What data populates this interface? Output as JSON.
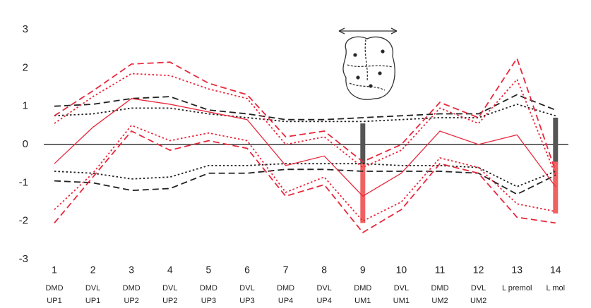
{
  "chart_data": {
    "type": "line",
    "categories": [
      "1",
      "2",
      "3",
      "4",
      "5",
      "6",
      "7",
      "8",
      "9",
      "10",
      "11",
      "12",
      "13",
      "14"
    ],
    "category_sublabels": [
      [
        "DMD",
        "UP1"
      ],
      [
        "DVL",
        "UP1"
      ],
      [
        "DMD",
        "UP2"
      ],
      [
        "DVL",
        "UP2"
      ],
      [
        "DMD",
        "UP3"
      ],
      [
        "DVL",
        "UP3"
      ],
      [
        "DMD",
        "UP4"
      ],
      [
        "DVL",
        "UP4"
      ],
      [
        "DMD",
        "UM1"
      ],
      [
        "DVL",
        "UM1"
      ],
      [
        "DMD",
        "UM2"
      ],
      [
        "DVL",
        "UM2"
      ],
      [
        "L premol"
      ],
      [
        "L mol"
      ]
    ],
    "ylim": [
      -3,
      3
    ],
    "yticks": [
      -3,
      -2,
      -1,
      0,
      1,
      2,
      3
    ],
    "zero_line": true,
    "series": [
      {
        "color": "#222222",
        "dash": "dashed",
        "values": [
          1.0,
          1.05,
          1.2,
          1.25,
          0.9,
          0.8,
          0.65,
          0.65,
          0.7,
          0.75,
          0.8,
          0.8,
          1.3,
          0.9
        ]
      },
      {
        "color": "#222222",
        "dash": "dotted",
        "values": [
          0.75,
          0.8,
          0.95,
          0.95,
          0.8,
          0.7,
          0.6,
          0.6,
          0.6,
          0.65,
          0.7,
          0.7,
          1.05,
          0.75
        ]
      },
      {
        "color": "#222222",
        "dash": "dotted",
        "values": [
          -0.7,
          -0.75,
          -0.9,
          -0.85,
          -0.55,
          -0.55,
          -0.5,
          -0.5,
          -0.5,
          -0.55,
          -0.55,
          -0.6,
          -1.1,
          -0.7
        ]
      },
      {
        "color": "#222222",
        "dash": "dashed",
        "values": [
          -0.95,
          -1.0,
          -1.2,
          -1.15,
          -0.75,
          -0.75,
          -0.65,
          -0.65,
          -0.7,
          -0.7,
          -0.7,
          -0.75,
          -1.3,
          -0.8
        ]
      },
      {
        "color": "#e8283c",
        "dash": "solid",
        "values": [
          -0.5,
          0.45,
          1.2,
          1.05,
          0.85,
          0.65,
          -0.55,
          -0.3,
          -1.35,
          -0.75,
          0.35,
          0.0,
          0.25,
          -1.1
        ]
      },
      {
        "color": "#e8283c",
        "dash": "dashed",
        "values": [
          0.75,
          1.4,
          2.1,
          2.15,
          1.6,
          1.3,
          0.2,
          0.35,
          -0.45,
          0.0,
          1.1,
          0.7,
          2.25,
          -0.7
        ]
      },
      {
        "color": "#e8283c",
        "dash": "dotted",
        "values": [
          0.55,
          1.25,
          1.85,
          1.8,
          1.45,
          1.2,
          0.0,
          0.2,
          -0.6,
          -0.15,
          0.95,
          0.55,
          1.7,
          -0.8
        ]
      },
      {
        "color": "#e8283c",
        "dash": "dotted",
        "values": [
          -1.7,
          -0.75,
          0.5,
          0.1,
          0.3,
          0.1,
          -1.25,
          -0.85,
          -2.0,
          -1.5,
          -0.35,
          -0.6,
          -1.55,
          -1.75
        ]
      },
      {
        "color": "#e8283c",
        "dash": "dashed",
        "values": [
          -2.05,
          -0.85,
          0.35,
          -0.15,
          0.1,
          -0.1,
          -1.35,
          -1.05,
          -2.3,
          -1.7,
          -0.5,
          -0.75,
          -1.9,
          -2.05
        ]
      }
    ],
    "range_bars": [
      {
        "x": "9",
        "low": -0.55,
        "high": 0.55,
        "color": "#555555"
      },
      {
        "x": "9",
        "low": -2.05,
        "high": -0.5,
        "color": "#f06262"
      },
      {
        "x": "14",
        "low": -0.5,
        "high": 0.7,
        "color": "#555555"
      },
      {
        "x": "14",
        "low": -1.8,
        "high": -0.45,
        "color": "#f06262"
      }
    ]
  }
}
